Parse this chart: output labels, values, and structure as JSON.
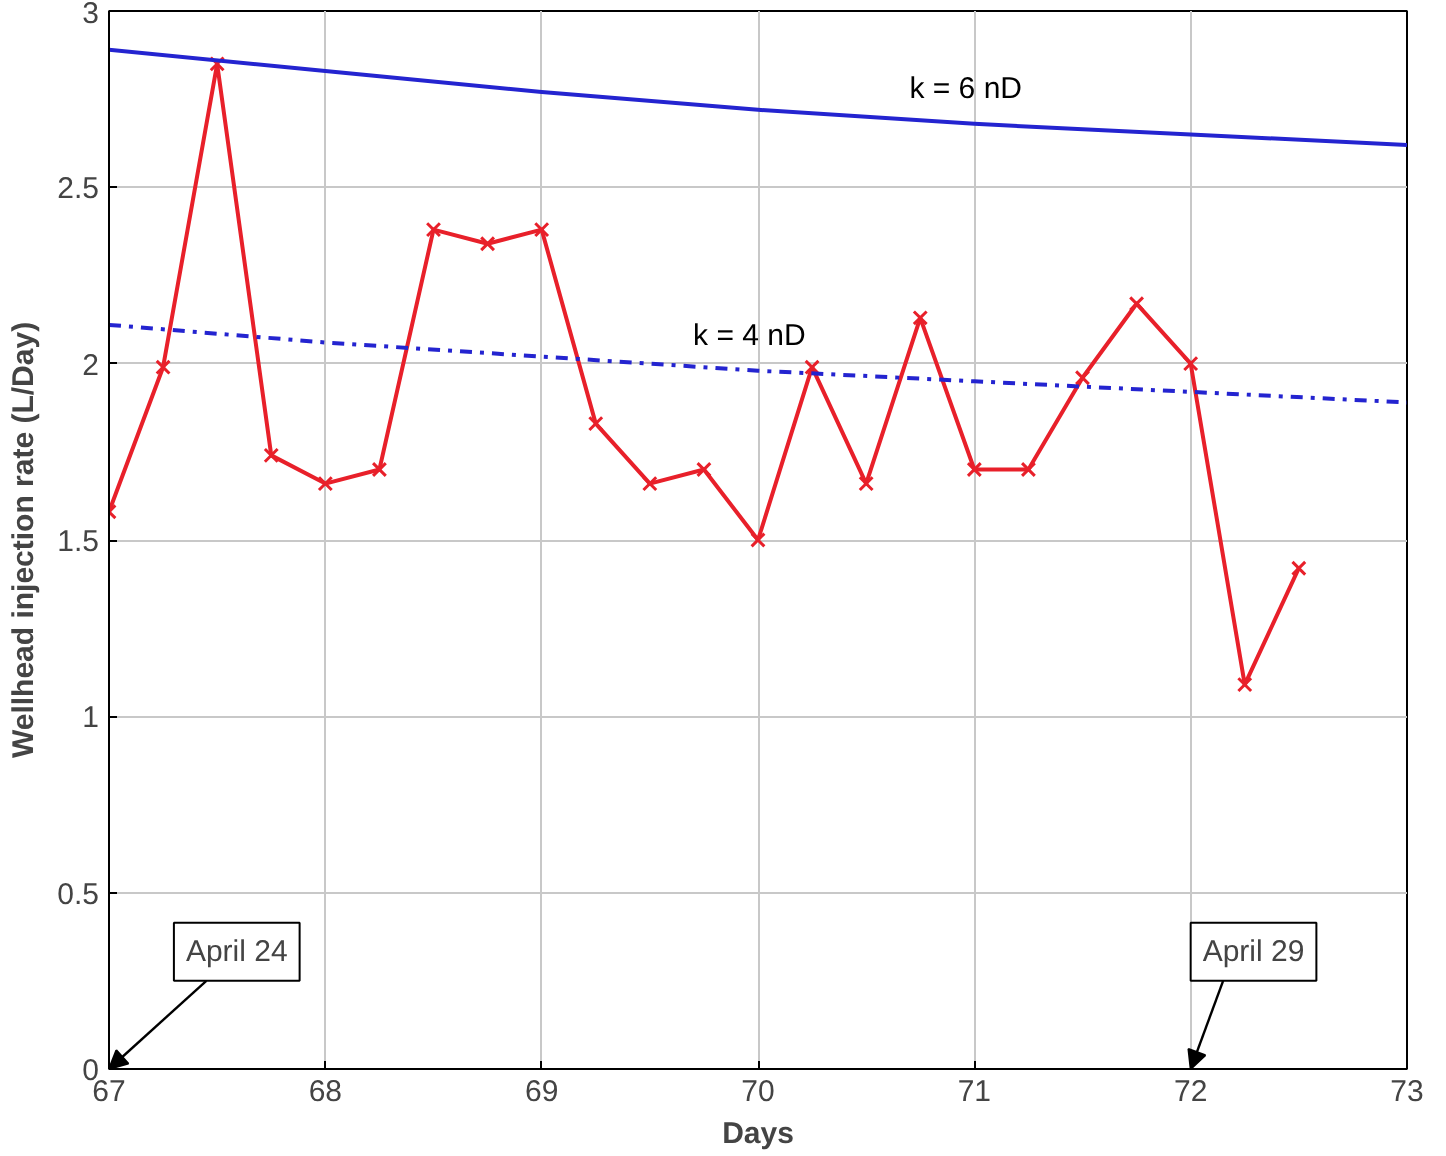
{
  "chart_data": {
    "type": "line",
    "xlabel": "Days",
    "ylabel": "Wellhead injection rate (L/Day)",
    "xlim": [
      67,
      73
    ],
    "ylim": [
      0,
      3
    ],
    "xticks": [
      67,
      68,
      69,
      70,
      71,
      72,
      73
    ],
    "yticks": [
      0,
      0.5,
      1,
      1.5,
      2,
      2.5,
      3
    ],
    "grid": true,
    "series": [
      {
        "color": "#e8202a",
        "marker": "cross",
        "line_style": "solid",
        "x": [
          67,
          67.25,
          67.5,
          67.75,
          68,
          68.25,
          68.5,
          68.75,
          69,
          69.25,
          69.5,
          69.75,
          70,
          70.25,
          70.5,
          70.75,
          71,
          71.25,
          71.5,
          71.75,
          72,
          72.25,
          72.5
        ],
        "values": [
          1.58,
          1.99,
          2.85,
          1.74,
          1.66,
          1.7,
          2.38,
          2.34,
          2.38,
          1.83,
          1.66,
          1.7,
          1.5,
          1.99,
          1.66,
          2.13,
          1.7,
          1.7,
          1.96,
          2.17,
          2.0,
          1.09,
          1.42
        ]
      },
      {
        "name": "k = 6 nD",
        "color": "#2424d0",
        "marker": "none",
        "line_style": "solid",
        "x": [
          67,
          68,
          69,
          70,
          71,
          72,
          73
        ],
        "values": [
          2.89,
          2.83,
          2.77,
          2.72,
          2.68,
          2.65,
          2.62
        ]
      },
      {
        "name": "k = 4 nD",
        "color": "#2424d0",
        "marker": "none",
        "line_style": "dashdot",
        "x": [
          67,
          68,
          69,
          70,
          71,
          72,
          73
        ],
        "values": [
          2.11,
          2.06,
          2.02,
          1.98,
          1.95,
          1.92,
          1.89
        ]
      }
    ],
    "annotations": [
      "April 24",
      "April 29"
    ]
  }
}
